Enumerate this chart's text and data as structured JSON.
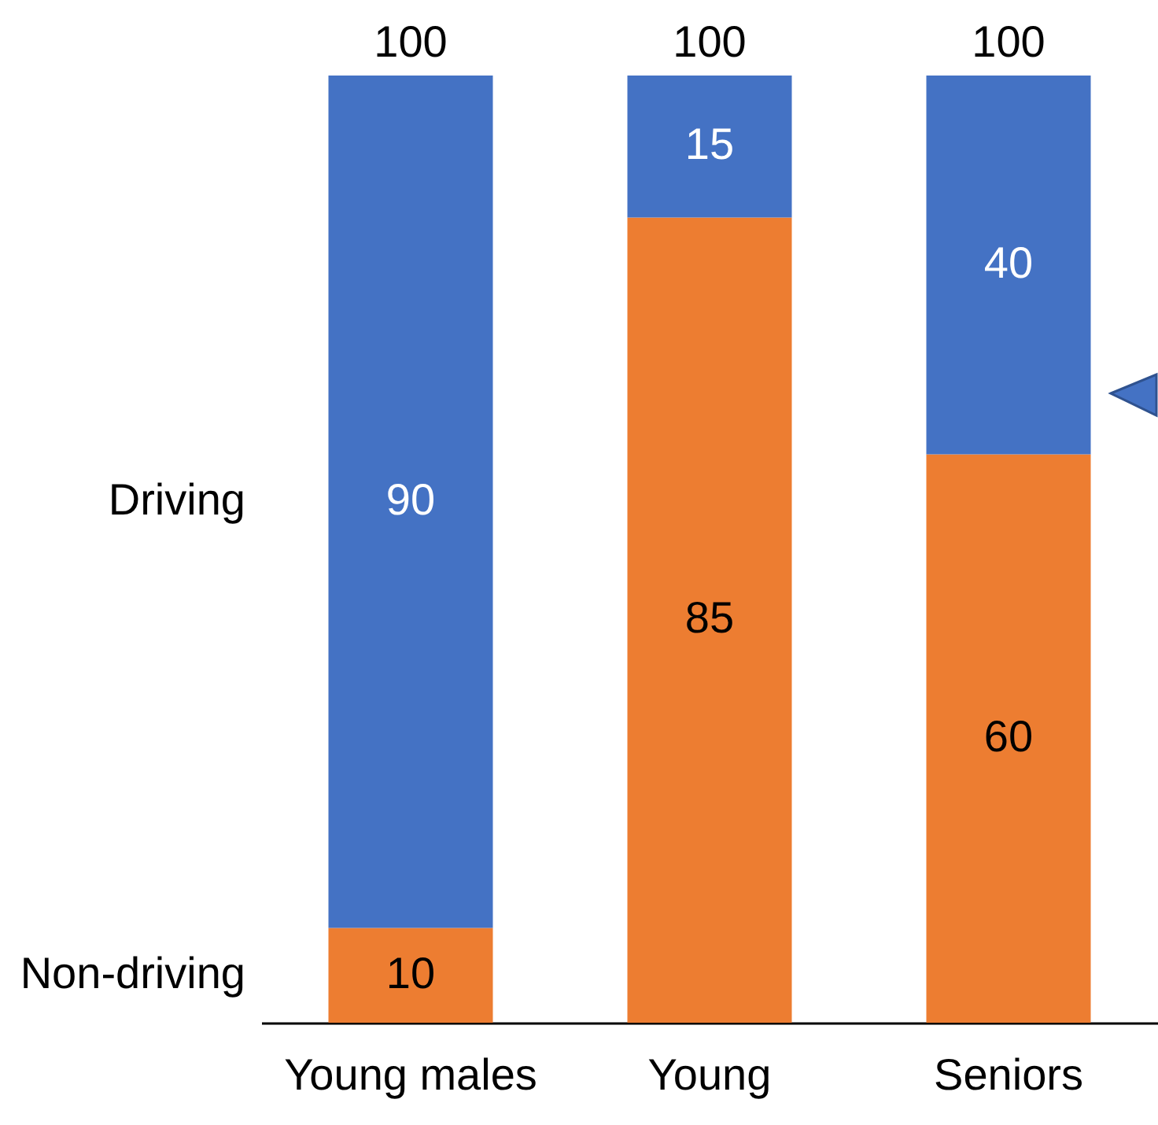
{
  "chart_data": {
    "type": "bar",
    "stacked": true,
    "categories": [
      "Young males",
      "Young",
      "Seniors"
    ],
    "series": [
      {
        "name": "Non-driving",
        "color": "#ed7d31",
        "values": [
          10,
          85,
          60
        ]
      },
      {
        "name": "Driving",
        "color": "#4472c4",
        "values": [
          90,
          15,
          40
        ]
      }
    ],
    "data_labels": true,
    "totals": [
      "100",
      "100",
      "100"
    ],
    "tick_labels": "x",
    "legend": false
  }
}
